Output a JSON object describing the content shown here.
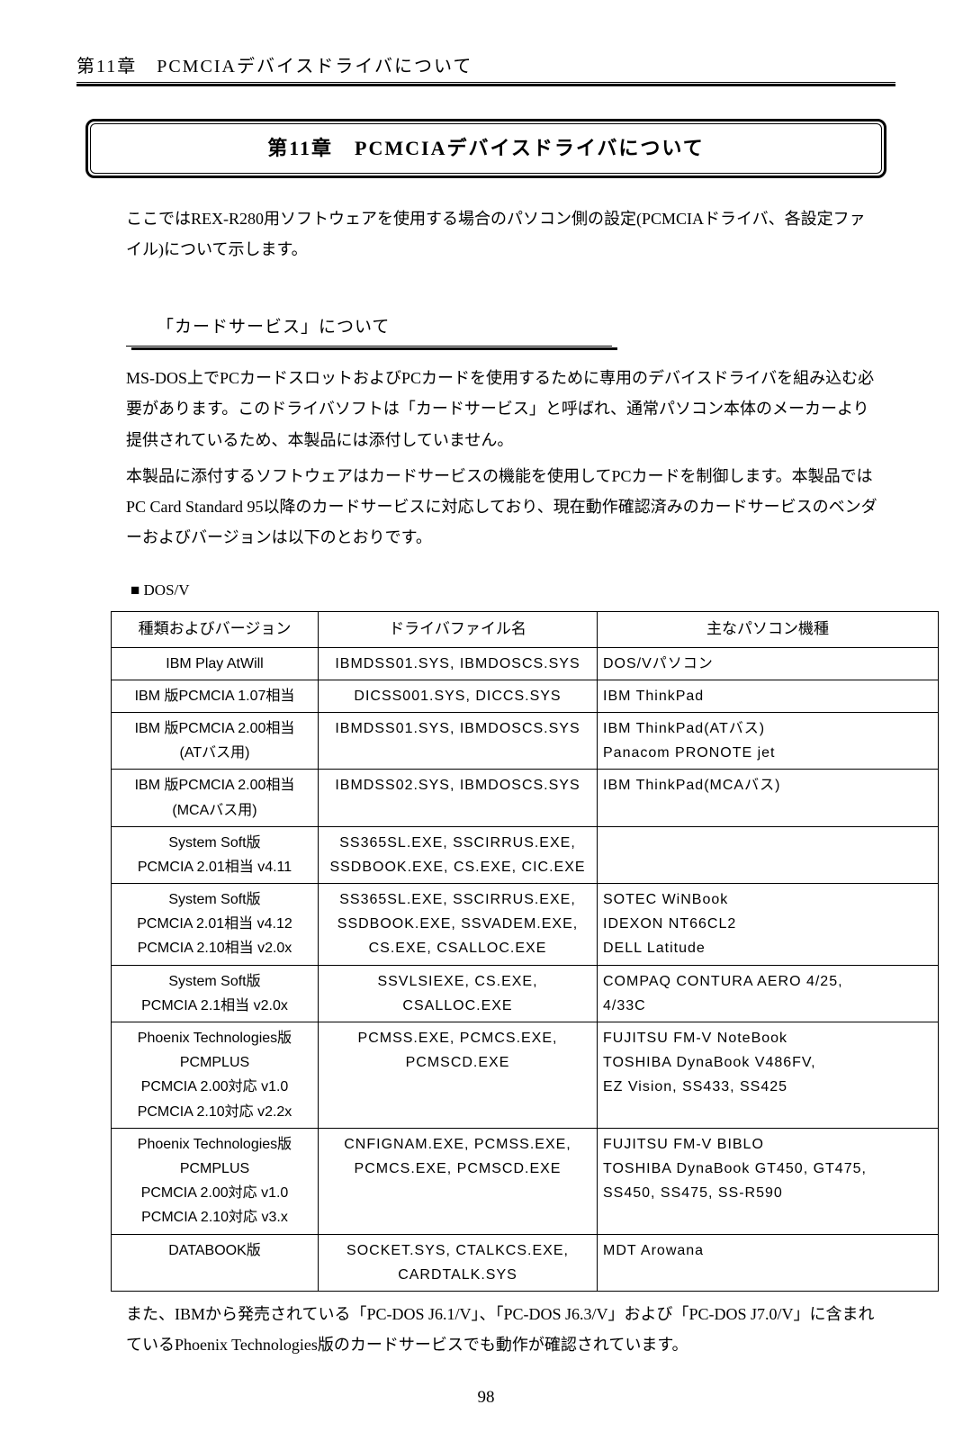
{
  "header": "第11章　PCMCIAデバイスドライバについて",
  "titleBox": "第11章　PCMCIAデバイスドライバについて",
  "intro": "ここではREX-R280用ソフトウェアを使用する場合のパソコン側の設定(PCMCIAドライバ、各設定ファイル)について示します。",
  "section1": {
    "heading": "「カードサービス」について",
    "para1": "MS-DOS上でPCカードスロットおよびPCカードを使用するために専用のデバイスドライバを組み込む必要があります。このドライバソフトは「カードサービス」と呼ばれ、通常パソコン本体のメーカーより提供されているため、本製品には添付していません。",
    "para2": "本製品に添付するソフトウェアはカードサービスの機能を使用してPCカードを制御します。本製品ではPC Card Standard 95以降のカードサービスに対応しており、現在動作確認済みのカードサービスのベンダーおよびバージョンは以下のとおりです。"
  },
  "tableLabel": "■ DOS/V",
  "table": {
    "columns": [
      "種類およびバージョン",
      "ドライバファイル名",
      "主なパソコン機種"
    ],
    "rows": [
      {
        "type": "IBM Play AtWill",
        "driver": "IBMDSS01.SYS, IBMDOSCS.SYS",
        "pc": "DOS/Vパソコン"
      },
      {
        "type": "IBM 版PCMCIA 1.07相当",
        "driver": "DICSS001.SYS, DICCS.SYS",
        "pc": "IBM ThinkPad"
      },
      {
        "type": "IBM 版PCMCIA 2.00相当\n(ATバス用)",
        "driver": "IBMDSS01.SYS, IBMDOSCS.SYS",
        "pc": "IBM ThinkPad(ATバス)\nPanacom PRONOTE jet"
      },
      {
        "type": "IBM 版PCMCIA 2.00相当\n(MCAバス用)",
        "driver": "IBMDSS02.SYS, IBMDOSCS.SYS",
        "pc": "IBM ThinkPad(MCAバス)"
      },
      {
        "type": "System Soft版\nPCMCIA 2.01相当 v4.11",
        "driver": "SS365SL.EXE, SSCIRRUS.EXE,\nSSDBOOK.EXE, CS.EXE, CIC.EXE",
        "pc": ""
      },
      {
        "type": "System Soft版\nPCMCIA 2.01相当 v4.12\nPCMCIA 2.10相当 v2.0x",
        "driver": "SS365SL.EXE, SSCIRRUS.EXE,\nSSDBOOK.EXE, SSVADEM.EXE,\nCS.EXE, CSALLOC.EXE",
        "pc": "SOTEC WiNBook\nIDEXON NT66CL2\nDELL Latitude"
      },
      {
        "type": "System Soft版\nPCMCIA 2.1相当 v2.0x",
        "driver": "SSVLSIEXE, CS.EXE,\nCSALLOC.EXE",
        "pc": "COMPAQ CONTURA AERO 4/25,\n4/33C"
      },
      {
        "type": "Phoenix Technologies版\nPCMPLUS\nPCMCIA 2.00対応 v1.0\nPCMCIA 2.10対応 v2.2x",
        "driver": "PCMSS.EXE, PCMCS.EXE,\nPCMSCD.EXE",
        "pc": "FUJITSU FM-V NoteBook\nTOSHIBA DynaBook V486FV,\nEZ Vision, SS433, SS425"
      },
      {
        "type": "Phoenix Technologies版\nPCMPLUS\nPCMCIA 2.00対応 v1.0\nPCMCIA 2.10対応 v3.x",
        "driver": "CNFIGNAM.EXE, PCMSS.EXE,\nPCMCS.EXE, PCMSCD.EXE",
        "pc": "FUJITSU FM-V BIBLO\nTOSHIBA DynaBook GT450, GT475,\nSS450, SS475, SS-R590"
      },
      {
        "type": "DATABOOK版",
        "driver": "SOCKET.SYS, CTALKCS.EXE,\nCARDTALK.SYS",
        "pc": "MDT Arowana"
      }
    ]
  },
  "footnote": "また、IBMから発売されている「PC-DOS J6.1/V」、「PC-DOS J6.3/V」および「PC-DOS J7.0/V」に含まれているPhoenix Technologies版のカードサービスでも動作が確認されています。",
  "pageNumber": "98"
}
